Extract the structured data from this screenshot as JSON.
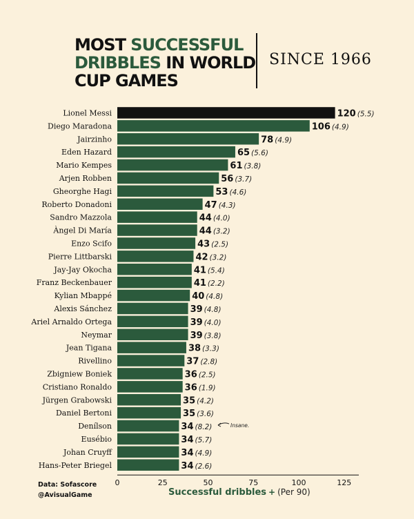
{
  "title": {
    "line1_part1": "MOST ",
    "line1_part2": "SUCCESSFUL",
    "line2_part1": "DRIBBLES",
    "line2_part2": " IN WORLD",
    "line3": "CUP GAMES"
  },
  "subtitle": "SINCE 1966",
  "colors": {
    "bar": "#2b5a3c",
    "highlight_bar": "#111111",
    "background": "#fbf1dc",
    "accent_text": "#2b5a3c"
  },
  "footer": {
    "source": "Data: Sofascore",
    "handle": "@AvisualGame"
  },
  "axis_title": {
    "main": "Successful dribbles",
    "plus": "+",
    "per": "(Per 90)"
  },
  "annotation": {
    "text": "Insane."
  },
  "chart_data": {
    "type": "bar",
    "orientation": "horizontal",
    "xlim": [
      0,
      130
    ],
    "xticks": [
      0,
      25,
      50,
      75,
      100,
      125
    ],
    "highlight_index": 0,
    "annotation_index": 24,
    "categories": [
      "Lionel Messi",
      "Diego Maradona",
      "Jairzinho",
      "Eden Hazard",
      "Mario Kempes",
      "Arjen Robben",
      "Gheorghe Hagi",
      "Roberto Donadoni",
      "Sandro Mazzola",
      "Àngel Di María",
      "Enzo Scifo",
      "Pierre Littbarski",
      "Jay-Jay Okocha",
      "Franz Beckenbauer",
      "Kylian Mbappé",
      "Alexis Sánchez",
      "Ariel Arnaldo Ortega",
      "Neymar",
      "Jean Tigana",
      "Rivellino",
      "Zbigniew Boniek",
      "Cristiano Ronaldo",
      "Jürgen Grabowski",
      "Daniel Bertoni",
      "Denílson",
      "Eusébio",
      "Johan Cruyff",
      "Hans-Peter Briegel"
    ],
    "values": [
      120,
      106,
      78,
      65,
      61,
      56,
      53,
      47,
      44,
      44,
      43,
      42,
      41,
      41,
      40,
      39,
      39,
      39,
      38,
      37,
      36,
      36,
      35,
      35,
      34,
      34,
      34,
      34
    ],
    "per90_labels": [
      "(5.5)",
      "(4.9)",
      "(4.9)",
      "(5.6)",
      "(3.8)",
      "(3.7)",
      "(4.6)",
      "(4.3)",
      "(4.0)",
      "(3.2)",
      "(2.5)",
      "(3.2)",
      "(5.4)",
      "(2.2)",
      "(4.8)",
      "(4.8)",
      "(4.0)",
      "(3.8)",
      "(3.3)",
      "(2.8)",
      "(2.5)",
      "(1.9)",
      "(4.2)",
      "(3.6)",
      "(8.2)",
      "(5.7)",
      "(4.9)",
      "(2.6)"
    ]
  }
}
